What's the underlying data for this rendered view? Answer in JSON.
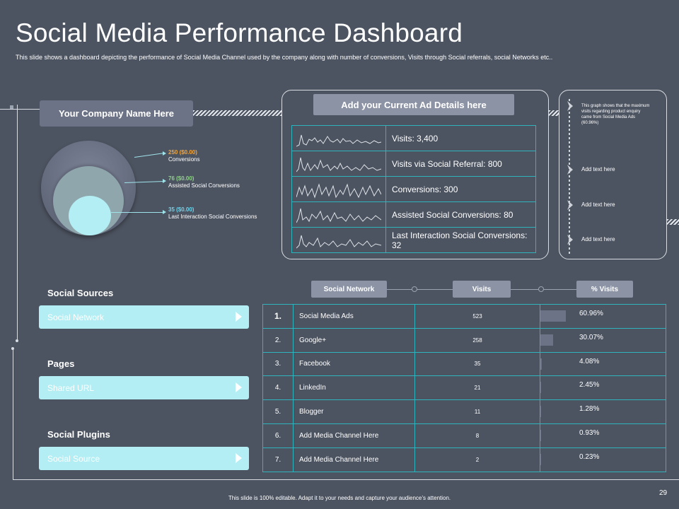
{
  "header": {
    "title": "Social Media Performance Dashboard",
    "subtitle": "This slide shows a dashboard depicting the performance of Social Media Channel used by the company along with number of conversions, Visits through Social referrals, social Networks etc.."
  },
  "company": {
    "label": "Your Company Name Here"
  },
  "funnel": {
    "items": [
      {
        "value": "250 ($0.00)",
        "label": "Conversions",
        "color": "#f2a43a"
      },
      {
        "value": "76 ($0.00)",
        "label": "Assisted Social Conversions",
        "color": "#8fd08a"
      },
      {
        "value": "35 ($0.00)",
        "label": "Last Interaction Social Conversions",
        "color": "#6fd3ea"
      }
    ]
  },
  "ad_details": {
    "title": "Add your Current Ad Details here",
    "rows": [
      {
        "text": "Visits: 3,400"
      },
      {
        "text": "Visits via Social Referral:  800"
      },
      {
        "text": "Conversions:  300"
      },
      {
        "text": "Assisted Social Conversions:  80"
      },
      {
        "text": "Last Interaction Social Conversions:  32"
      }
    ]
  },
  "side_panel": {
    "note": "This graph shows that the maximum visits regarding product enquiry came from Social Media Ads (60.96%)",
    "items": [
      "Add text here",
      "Add text here",
      "Add text here"
    ]
  },
  "sections": [
    {
      "heading": "Social Sources",
      "bar": "Social Network"
    },
    {
      "heading": "Pages",
      "bar": "Shared URL"
    },
    {
      "heading": "Social Plugins",
      "bar": "Social Source"
    }
  ],
  "network_table": {
    "headers": [
      "Social Network",
      "Visits",
      "% Visits"
    ],
    "rows": [
      {
        "num": "1.",
        "name": "Social Media Ads",
        "visits": "523",
        "pct": "60.96%",
        "fraction": 0.6096
      },
      {
        "num": "2.",
        "name": "Google+",
        "visits": "258",
        "pct": "30.07%",
        "fraction": 0.3007
      },
      {
        "num": "3.",
        "name": "Facebook",
        "visits": "35",
        "pct": "4.08%",
        "fraction": 0.0408
      },
      {
        "num": "4.",
        "name": "LinkedIn",
        "visits": "21",
        "pct": "2.45%",
        "fraction": 0.0245
      },
      {
        "num": "5.",
        "name": "Blogger",
        "visits": "11",
        "pct": "1.28%",
        "fraction": 0.0128
      },
      {
        "num": "6.",
        "name": "Add Media Channel Here",
        "visits": "8",
        "pct": "0.93%",
        "fraction": 0.0093
      },
      {
        "num": "7.",
        "name": "Add Media Channel Here",
        "visits": "2",
        "pct": "0.23%",
        "fraction": 0.0023
      }
    ]
  },
  "footer": {
    "note": "This slide is 100% editable. Adapt it to your needs and capture your audience’s attention.",
    "page_number": "29"
  },
  "colors": {
    "background": "#4d5461",
    "accent": "#b2eef3",
    "table_border": "#2fb3bd",
    "pill": "#8b93a5"
  }
}
